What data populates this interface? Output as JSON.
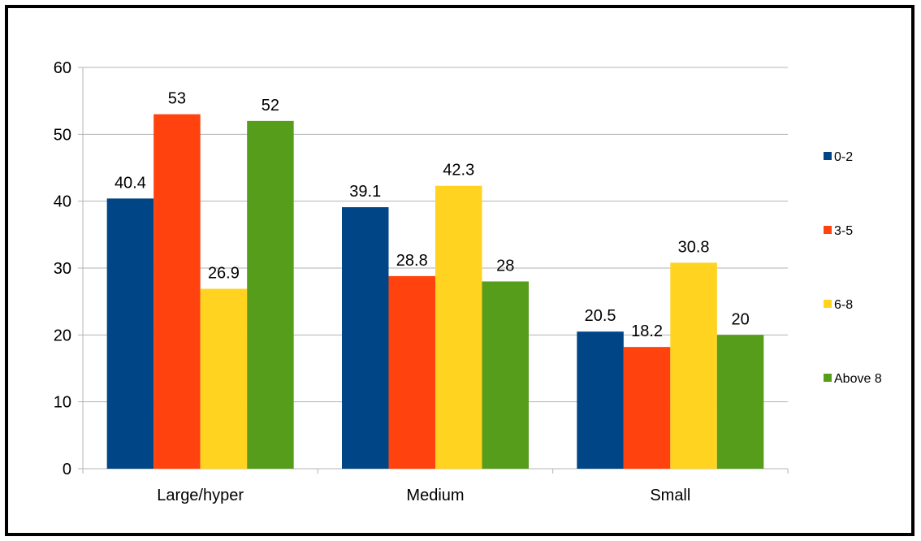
{
  "chart_data": {
    "type": "bar",
    "categories": [
      "Large/hyper",
      "Medium",
      "Small"
    ],
    "series": [
      {
        "name": "0-2",
        "color": "#004586",
        "values": [
          40.4,
          39.1,
          20.5
        ]
      },
      {
        "name": "3-5",
        "color": "#ff420e",
        "values": [
          53,
          28.8,
          18.2
        ]
      },
      {
        "name": "6-8",
        "color": "#ffd320",
        "values": [
          26.9,
          42.3,
          30.8
        ]
      },
      {
        "name": "Above 8",
        "color": "#579d1c",
        "values": [
          52,
          28,
          20
        ]
      }
    ],
    "title": "",
    "xlabel": "",
    "ylabel": "",
    "ylim": [
      0,
      60
    ],
    "yticks": [
      0,
      10,
      20,
      30,
      40,
      50,
      60
    ],
    "grid": "horizontal",
    "legend_position": "right",
    "data_labels": true
  }
}
